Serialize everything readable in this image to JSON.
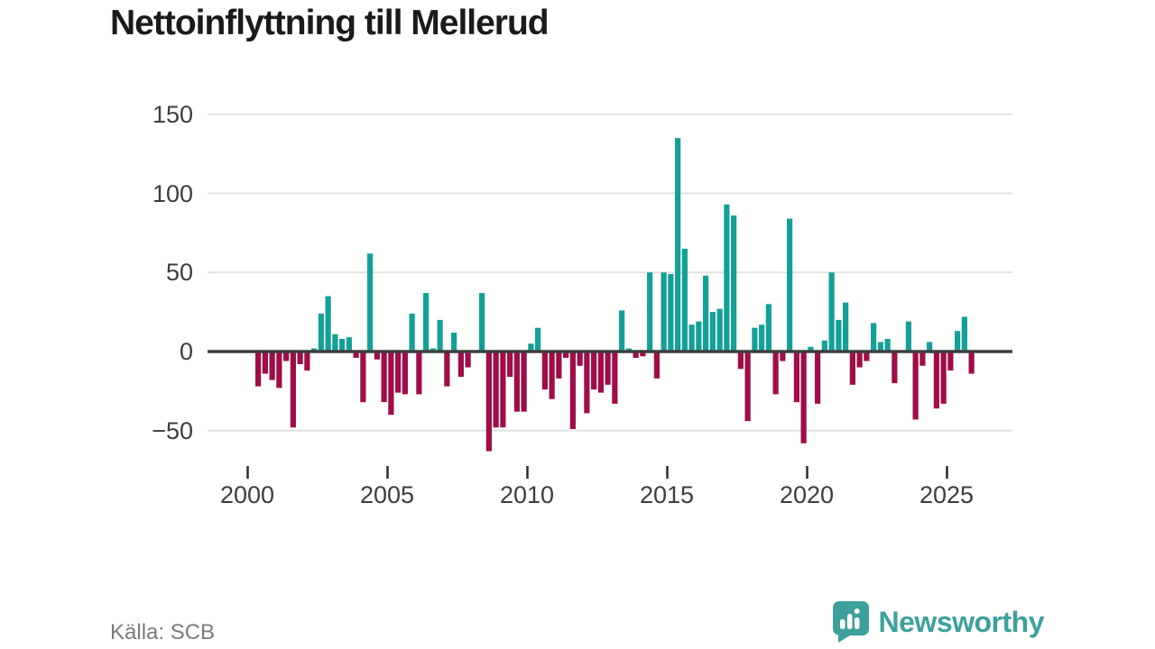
{
  "title": "Nettoinflyttning till Mellerud",
  "source": "Källa: SCB",
  "logo": {
    "brand": "Newsworthy",
    "icon": "newsworthy-chart-bubble-icon"
  },
  "colors": {
    "positive_bar": "#14a096",
    "negative_bar": "#a00d47",
    "gridline": "#e2e2e2",
    "zero_line": "#3d3d3d",
    "tick_mark": "#2b2b2b",
    "axis_text": "#3d3d3d",
    "title_text": "#1a1a1a",
    "source_text": "#7b7b7b",
    "brand_teal": "#3da09c"
  },
  "chart_data": {
    "type": "bar",
    "title": "Nettoinflyttning till Mellerud",
    "x_unit": "quarter",
    "start": "2000-Q2",
    "end": "2025-Q4",
    "grid": "horizontal",
    "legend": "none",
    "ylim": [
      -70,
      158
    ],
    "y_ticks": [
      150,
      100,
      50,
      0,
      -50
    ],
    "y_tick_labels": [
      "150",
      "100",
      "50",
      "0",
      "−50"
    ],
    "x_tick_years": [
      2000,
      2005,
      2010,
      2015,
      2020,
      2025
    ],
    "x_tick_labels": [
      "2000",
      "2005",
      "2010",
      "2015",
      "2020",
      "2025"
    ],
    "points": [
      [
        "2000-Q2",
        -22
      ],
      [
        "2000-Q3",
        -14
      ],
      [
        "2000-Q4",
        -18
      ],
      [
        "2001-Q1",
        -23
      ],
      [
        "2001-Q2",
        -6
      ],
      [
        "2001-Q3",
        -48
      ],
      [
        "2001-Q4",
        -8
      ],
      [
        "2002-Q1",
        -12
      ],
      [
        "2002-Q2",
        2
      ],
      [
        "2002-Q3",
        24
      ],
      [
        "2002-Q4",
        35
      ],
      [
        "2003-Q1",
        11
      ],
      [
        "2003-Q2",
        8
      ],
      [
        "2003-Q3",
        9
      ],
      [
        "2003-Q4",
        -4
      ],
      [
        "2004-Q1",
        -32
      ],
      [
        "2004-Q2",
        62
      ],
      [
        "2004-Q3",
        -5
      ],
      [
        "2004-Q4",
        -32
      ],
      [
        "2005-Q1",
        -40
      ],
      [
        "2005-Q2",
        -26
      ],
      [
        "2005-Q3",
        -27
      ],
      [
        "2005-Q4",
        24
      ],
      [
        "2006-Q1",
        -27
      ],
      [
        "2006-Q2",
        37
      ],
      [
        "2006-Q3",
        2
      ],
      [
        "2006-Q4",
        20
      ],
      [
        "2007-Q1",
        -22
      ],
      [
        "2007-Q2",
        12
      ],
      [
        "2007-Q3",
        -16
      ],
      [
        "2007-Q4",
        -10
      ],
      [
        "2008-Q1",
        0
      ],
      [
        "2008-Q2",
        37
      ],
      [
        "2008-Q3",
        -63
      ],
      [
        "2008-Q4",
        -48
      ],
      [
        "2009-Q1",
        -48
      ],
      [
        "2009-Q2",
        -16
      ],
      [
        "2009-Q3",
        -38
      ],
      [
        "2009-Q4",
        -38
      ],
      [
        "2010-Q1",
        5
      ],
      [
        "2010-Q2",
        15
      ],
      [
        "2010-Q3",
        -24
      ],
      [
        "2010-Q4",
        -30
      ],
      [
        "2011-Q1",
        -17
      ],
      [
        "2011-Q2",
        -4
      ],
      [
        "2011-Q3",
        -49
      ],
      [
        "2011-Q4",
        -9
      ],
      [
        "2012-Q1",
        -39
      ],
      [
        "2012-Q2",
        -24
      ],
      [
        "2012-Q3",
        -26
      ],
      [
        "2012-Q4",
        -21
      ],
      [
        "2013-Q1",
        -33
      ],
      [
        "2013-Q2",
        26
      ],
      [
        "2013-Q3",
        2
      ],
      [
        "2013-Q4",
        -4
      ],
      [
        "2014-Q1",
        -3
      ],
      [
        "2014-Q2",
        50
      ],
      [
        "2014-Q3",
        -17
      ],
      [
        "2014-Q4",
        50
      ],
      [
        "2015-Q1",
        49
      ],
      [
        "2015-Q2",
        135
      ],
      [
        "2015-Q3",
        65
      ],
      [
        "2015-Q4",
        17
      ],
      [
        "2016-Q1",
        19
      ],
      [
        "2016-Q2",
        48
      ],
      [
        "2016-Q3",
        25
      ],
      [
        "2016-Q4",
        27
      ],
      [
        "2017-Q1",
        93
      ],
      [
        "2017-Q2",
        86
      ],
      [
        "2017-Q3",
        -11
      ],
      [
        "2017-Q4",
        -44
      ],
      [
        "2018-Q1",
        15
      ],
      [
        "2018-Q2",
        17
      ],
      [
        "2018-Q3",
        30
      ],
      [
        "2018-Q4",
        -27
      ],
      [
        "2019-Q1",
        -6
      ],
      [
        "2019-Q2",
        84
      ],
      [
        "2019-Q3",
        -32
      ],
      [
        "2019-Q4",
        -58
      ],
      [
        "2020-Q1",
        3
      ],
      [
        "2020-Q2",
        -33
      ],
      [
        "2020-Q3",
        7
      ],
      [
        "2020-Q4",
        50
      ],
      [
        "2021-Q1",
        20
      ],
      [
        "2021-Q2",
        31
      ],
      [
        "2021-Q3",
        -21
      ],
      [
        "2021-Q4",
        -10
      ],
      [
        "2022-Q1",
        -6
      ],
      [
        "2022-Q2",
        18
      ],
      [
        "2022-Q3",
        6
      ],
      [
        "2022-Q4",
        8
      ],
      [
        "2023-Q1",
        -20
      ],
      [
        "2023-Q2",
        0
      ],
      [
        "2023-Q3",
        19
      ],
      [
        "2023-Q4",
        -43
      ],
      [
        "2024-Q1",
        -9
      ],
      [
        "2024-Q2",
        6
      ],
      [
        "2024-Q3",
        -36
      ],
      [
        "2024-Q4",
        -33
      ],
      [
        "2025-Q1",
        -12
      ],
      [
        "2025-Q2",
        13
      ],
      [
        "2025-Q3",
        22
      ],
      [
        "2025-Q4",
        -14
      ]
    ]
  }
}
